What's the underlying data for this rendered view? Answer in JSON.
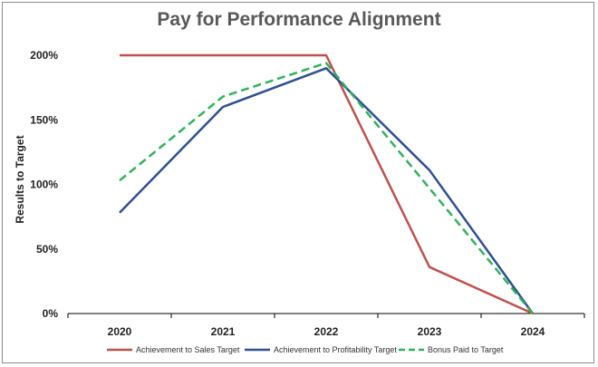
{
  "chart_data": {
    "type": "line",
    "title": "Pay for Performance Alignment",
    "xlabel": "",
    "ylabel": "Results to Target",
    "categories": [
      "2020",
      "2021",
      "2022",
      "2023",
      "2024"
    ],
    "ylim": [
      0,
      200
    ],
    "yticks": [
      0,
      50,
      100,
      150,
      200
    ],
    "ytick_labels": [
      "0%",
      "50%",
      "100%",
      "150%",
      "200%"
    ],
    "grid": false,
    "legend_position": "bottom",
    "series": [
      {
        "name": "Achievement to Sales Target",
        "values": [
          200,
          200,
          200,
          36,
          0
        ],
        "color": "#c0504d",
        "dash": "solid"
      },
      {
        "name": "Achievement to Profitability Target",
        "values": [
          78,
          160,
          190,
          111,
          0
        ],
        "color": "#2f4f93",
        "dash": "solid"
      },
      {
        "name": "Bonus Paid to Target",
        "values": [
          103,
          168,
          194,
          97,
          0
        ],
        "color": "#2db45a",
        "dash": "dashed"
      }
    ]
  }
}
